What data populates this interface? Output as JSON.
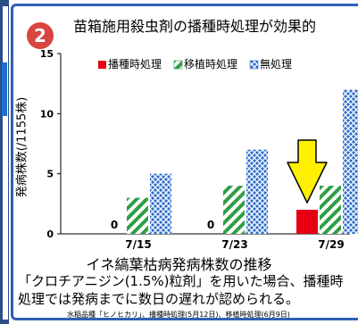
{
  "header": {
    "badge": "2",
    "title": "苗箱施用殺虫剤の播種時処理が効果的"
  },
  "chart_data": {
    "type": "bar",
    "ylabel": "発病株数(/1155株)",
    "ylim": [
      0,
      15
    ],
    "yticks": [
      0,
      5,
      10,
      15
    ],
    "categories": [
      "7/15",
      "7/23",
      "7/29"
    ],
    "legend_position": "top-right",
    "series": [
      {
        "name": "播種時処理",
        "values": [
          0,
          0,
          2
        ],
        "color": "#e60012",
        "pattern": "solid"
      },
      {
        "name": "移植時処理",
        "values": [
          3,
          4,
          4
        ],
        "color": "#2f9e45",
        "pattern": "diagonal"
      },
      {
        "name": "無処理",
        "values": [
          5,
          7,
          12
        ],
        "color": "#2f6fd0",
        "pattern": "crosshatch"
      }
    ],
    "data_labels": [
      "0",
      "0"
    ],
    "arrow_color": "#ffef00"
  },
  "caption": "イネ縞葉枯病発病株数の推移",
  "description_line1": "「クロチアニジン(1.5%)粒剤」を用いた場合、播種時",
  "description_line2": "処理では発病までに数日の遅れが認められる。",
  "note": "水稲品種「ヒノヒカリ」、播種時処理(5月12日)、移植時処理(6月9日)"
}
